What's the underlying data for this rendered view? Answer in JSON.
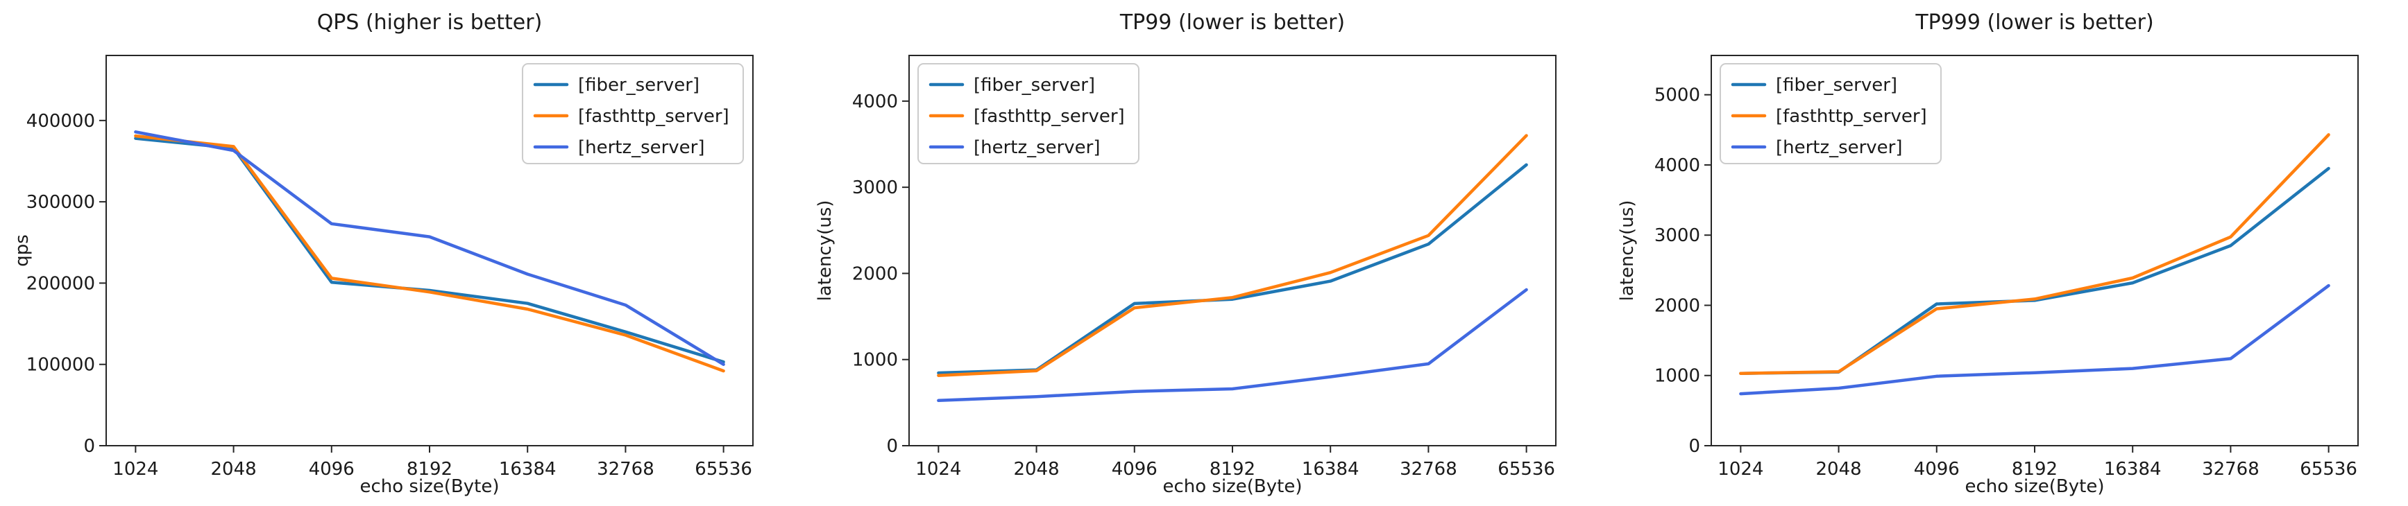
{
  "figure": {
    "background": "#ffffff",
    "text_color": "#1a1a1a",
    "spine_color": "#262626",
    "legend_border_color": "#cccccc",
    "legend_background": "#ffffff"
  },
  "chart_data": [
    {
      "type": "line",
      "title": "QPS (higher is better)",
      "xlabel": "echo size(Byte)",
      "ylabel": "qps",
      "categories": [
        "1024",
        "2048",
        "4096",
        "8192",
        "16384",
        "32768",
        "65536"
      ],
      "x": [
        1024,
        2048,
        4096,
        8192,
        16384,
        32768,
        65536
      ],
      "yticks": [
        0,
        100000,
        200000,
        300000,
        400000
      ],
      "ylim": [
        0,
        480000
      ],
      "grid": false,
      "legend_position": "upper-right",
      "series": [
        {
          "name": "[fiber_server]",
          "color": "#1f77b4",
          "values": [
            378000,
            366000,
            201000,
            191000,
            175000,
            140000,
            103000
          ]
        },
        {
          "name": "[fasthttp_server]",
          "color": "#ff7f0e",
          "values": [
            381000,
            368000,
            206000,
            189000,
            168000,
            136000,
            92000
          ]
        },
        {
          "name": "[hertz_server]",
          "color": "#4169e1",
          "values": [
            386000,
            363000,
            273000,
            257000,
            211000,
            173000,
            100000
          ]
        }
      ]
    },
    {
      "type": "line",
      "title": "TP99 (lower is better)",
      "xlabel": "echo size(Byte)",
      "ylabel": "latency(us)",
      "categories": [
        "1024",
        "2048",
        "4096",
        "8192",
        "16384",
        "32768",
        "65536"
      ],
      "x": [
        1024,
        2048,
        4096,
        8192,
        16384,
        32768,
        65536
      ],
      "yticks": [
        0,
        1000,
        2000,
        3000,
        4000
      ],
      "ylim": [
        0,
        4530
      ],
      "grid": false,
      "legend_position": "upper-left",
      "series": [
        {
          "name": "[fiber_server]",
          "color": "#1f77b4",
          "values": [
            845,
            880,
            1650,
            1700,
            1910,
            2340,
            3260
          ]
        },
        {
          "name": "[fasthttp_server]",
          "color": "#ff7f0e",
          "values": [
            815,
            870,
            1600,
            1720,
            2010,
            2440,
            3600
          ]
        },
        {
          "name": "[hertz_server]",
          "color": "#4169e1",
          "values": [
            525,
            570,
            630,
            660,
            800,
            950,
            1810
          ]
        }
      ]
    },
    {
      "type": "line",
      "title": "TP999 (lower is better)",
      "xlabel": "echo size(Byte)",
      "ylabel": "latency(us)",
      "categories": [
        "1024",
        "2048",
        "4096",
        "8192",
        "16384",
        "32768",
        "65536"
      ],
      "x": [
        1024,
        2048,
        4096,
        8192,
        16384,
        32768,
        65536
      ],
      "yticks": [
        0,
        1000,
        2000,
        3000,
        4000,
        5000
      ],
      "ylim": [
        0,
        5560
      ],
      "grid": false,
      "legend_position": "upper-left",
      "series": [
        {
          "name": "[fiber_server]",
          "color": "#1f77b4",
          "values": [
            1030,
            1050,
            2020,
            2070,
            2320,
            2850,
            3950
          ]
        },
        {
          "name": "[fasthttp_server]",
          "color": "#ff7f0e",
          "values": [
            1030,
            1055,
            1950,
            2090,
            2390,
            2975,
            4430
          ]
        },
        {
          "name": "[hertz_server]",
          "color": "#4169e1",
          "values": [
            740,
            820,
            990,
            1040,
            1100,
            1240,
            2280
          ]
        }
      ]
    }
  ]
}
